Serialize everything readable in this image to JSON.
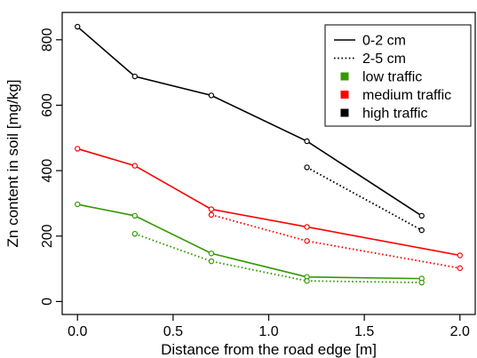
{
  "chart_data": {
    "type": "line",
    "title": "",
    "xlabel": "Distance from the road edge [m]",
    "ylabel": "Zn content in soil [mg/kg]",
    "xlim": [
      0.0,
      2.0
    ],
    "ylim": [
      0,
      900
    ],
    "xticks": [
      0.0,
      0.5,
      1.0,
      1.5,
      2.0
    ],
    "xtick_labels": [
      "0.0",
      "0.5",
      "1.0",
      "1.5",
      "2.0"
    ],
    "yticks": [
      0,
      200,
      400,
      600,
      800
    ],
    "ytick_labels": [
      "0",
      "200",
      "400",
      "600",
      "800"
    ],
    "grid": false,
    "legend_position": "top-right",
    "legend": [
      {
        "label": "0-2 cm",
        "kind": "line-solid",
        "color": "#000000"
      },
      {
        "label": "2-5 cm",
        "kind": "line-dotted",
        "color": "#000000"
      },
      {
        "label": "low traffic",
        "kind": "square",
        "color": "#339900"
      },
      {
        "label": "medium traffic",
        "kind": "square",
        "color": "#ff0000"
      },
      {
        "label": "high traffic",
        "kind": "square",
        "color": "#000000"
      }
    ],
    "series": [
      {
        "traffic": "high",
        "depth": "0-2 cm",
        "style": "solid",
        "color": "#000000",
        "points": [
          [
            0.0,
            840
          ],
          [
            0.3,
            688
          ],
          [
            0.7,
            630
          ],
          [
            1.2,
            490
          ],
          [
            1.8,
            262
          ]
        ]
      },
      {
        "traffic": "high",
        "depth": "2-5 cm",
        "style": "dotted",
        "color": "#000000",
        "points": [
          [
            1.2,
            410
          ],
          [
            1.8,
            218
          ]
        ]
      },
      {
        "traffic": "medium",
        "depth": "0-2 cm",
        "style": "solid",
        "color": "#ff0000",
        "points": [
          [
            0.0,
            467
          ],
          [
            0.3,
            415
          ],
          [
            0.7,
            282
          ],
          [
            1.2,
            228
          ],
          [
            2.0,
            141
          ]
        ]
      },
      {
        "traffic": "medium",
        "depth": "2-5 cm",
        "style": "dotted",
        "color": "#ff0000",
        "points": [
          [
            0.7,
            265
          ],
          [
            1.2,
            185
          ],
          [
            2.0,
            102
          ]
        ]
      },
      {
        "traffic": "low",
        "depth": "0-2 cm",
        "style": "solid",
        "color": "#339900",
        "points": [
          [
            0.0,
            297
          ],
          [
            0.3,
            262
          ],
          [
            0.7,
            147
          ],
          [
            1.2,
            75
          ],
          [
            1.8,
            70
          ]
        ]
      },
      {
        "traffic": "low",
        "depth": "2-5 cm",
        "style": "dotted",
        "color": "#339900",
        "points": [
          [
            0.3,
            207
          ],
          [
            0.7,
            123
          ],
          [
            1.2,
            63
          ],
          [
            1.8,
            58
          ]
        ]
      }
    ]
  }
}
